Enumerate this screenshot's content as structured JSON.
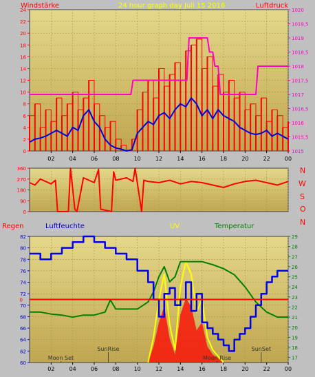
{
  "top": {
    "label_left": "Windstärke",
    "label_title": "24 hour graph day   Juli 15 2016",
    "label_right": "Luftdruck"
  },
  "wind_dir": {
    "labels": [
      "N",
      "W",
      "S",
      "O",
      "N"
    ]
  },
  "bottom": {
    "label_regen": "Regen",
    "label_feuchte": "Luftfeuchte",
    "label_uv": "UV",
    "label_temp": "Temperatur",
    "events": [
      {
        "label": "Moon Set",
        "hour": 2.9
      },
      {
        "label": "SunRise",
        "hour": 7.3
      },
      {
        "label": "Moon Rise",
        "hour": 17.4
      },
      {
        "label": "SunSet",
        "hour": 21.5
      }
    ]
  },
  "colors": {
    "panel_bg_top": "#e4d88a",
    "panel_bg_bottom": "#c0a650",
    "wind": "#ff0000",
    "wind_avg": "#0000dd",
    "pressure": "#ff00cc",
    "humidity": "#0000ee",
    "uv": "#ffff00",
    "temperature": "#008000",
    "rain": "#ff0000",
    "solar": "#ff0000"
  },
  "chart_data": [
    {
      "type": "line",
      "name": "wind-pressure",
      "x_ticks": [
        "02",
        "04",
        "06",
        "08",
        "10",
        "12",
        "14",
        "16",
        "18",
        "20",
        "22",
        "00"
      ],
      "ylim": [
        0,
        24
      ],
      "y_ticks": [
        "0",
        "2",
        "4",
        "6",
        "8",
        "10",
        "12",
        "14",
        "16",
        "18",
        "20",
        "22",
        "24"
      ],
      "y2lim": [
        1015,
        1020
      ],
      "y2_ticks": [
        "1015",
        "1015,5",
        "1016",
        "1016,5",
        "1017",
        "1017,5",
        "1018",
        "1018,5",
        "1019",
        "1019,5",
        "1020"
      ],
      "series": [
        {
          "name": "Windstärke",
          "x": [
            0,
            0.5,
            1,
            1.5,
            2,
            2.5,
            3,
            3.5,
            4,
            4.5,
            5,
            5.5,
            6,
            6.5,
            7,
            7.5,
            8,
            8.5,
            9,
            9.5,
            10,
            10.5,
            11,
            11.5,
            12,
            12.5,
            13,
            13.5,
            14,
            14.5,
            15,
            15.5,
            16,
            16.5,
            17,
            17.5,
            18,
            18.5,
            19,
            19.5,
            20,
            20.5,
            21,
            21.5,
            22,
            22.5,
            23,
            23.5,
            24
          ],
          "y": [
            6,
            8,
            4,
            7,
            5,
            9,
            6,
            8,
            10,
            7,
            9,
            12,
            8,
            6,
            4,
            5,
            2,
            1,
            0,
            2,
            7,
            10,
            12,
            9,
            14,
            11,
            13,
            15,
            12,
            17,
            18,
            19,
            14,
            16,
            11,
            13,
            10,
            12,
            9,
            10,
            7,
            8,
            6,
            9,
            5,
            7,
            6,
            4,
            5
          ]
        },
        {
          "name": "Windstärke Mittel",
          "x": [
            0,
            0.5,
            1,
            1.5,
            2,
            2.5,
            3,
            3.5,
            4,
            4.5,
            5,
            5.5,
            6,
            6.5,
            7,
            7.5,
            8,
            8.5,
            9,
            9.5,
            10,
            10.5,
            11,
            11.5,
            12,
            12.5,
            13,
            13.5,
            14,
            14.5,
            15,
            15.5,
            16,
            16.5,
            17,
            17.5,
            18,
            18.5,
            19,
            19.5,
            20,
            20.5,
            21,
            21.5,
            22,
            22.5,
            23,
            23.5,
            24
          ],
          "y": [
            1.5,
            2,
            2.2,
            2.5,
            3,
            3.5,
            3,
            2.5,
            4,
            3.5,
            6,
            7,
            5,
            4,
            2,
            1,
            0.5,
            0.3,
            0,
            0.2,
            3,
            4,
            5,
            4.5,
            6,
            6.5,
            5.5,
            7,
            8,
            7.5,
            9,
            8,
            6,
            7,
            5.5,
            7,
            6,
            5.5,
            5,
            4,
            3.5,
            3,
            2.8,
            3,
            3.5,
            2.5,
            3,
            2.5,
            2
          ]
        },
        {
          "name": "Luftdruck",
          "x": [
            0,
            1,
            1.2,
            4.8,
            5,
            9.4,
            9.6,
            10.6,
            10.8,
            14.6,
            14.8,
            16.5,
            16.7,
            17,
            17.2,
            17.5,
            17.7,
            21,
            21.2,
            24
          ],
          "y": [
            1017,
            1017,
            1017,
            1017,
            1017,
            1017,
            1017.5,
            1017.5,
            1017.5,
            1017.5,
            1019,
            1019,
            1018.5,
            1018.5,
            1018,
            1018,
            1017,
            1017,
            1018,
            1018
          ]
        }
      ]
    },
    {
      "type": "line",
      "name": "wind-direction",
      "ylim": [
        0,
        360
      ],
      "y_ticks": [
        "0",
        "90",
        "180",
        "270",
        "360"
      ],
      "series": [
        {
          "name": "Windrichtung",
          "x": [
            0,
            0.5,
            1,
            1.5,
            2,
            2.4,
            2.6,
            3.6,
            3.8,
            4.2,
            4.4,
            5,
            5.5,
            6,
            6.4,
            6.6,
            7.6,
            7.8,
            8,
            9,
            9.6,
            9.8,
            10.4,
            10.6,
            11,
            12,
            13,
            14,
            15,
            16,
            17,
            18,
            19,
            20,
            21,
            22,
            23,
            24
          ],
          "y": [
            240,
            220,
            270,
            250,
            230,
            260,
            0,
            0,
            360,
            20,
            0,
            280,
            260,
            240,
            350,
            20,
            0,
            330,
            260,
            280,
            250,
            360,
            0,
            260,
            250,
            240,
            260,
            230,
            250,
            240,
            220,
            200,
            230,
            250,
            260,
            240,
            220,
            250
          ]
        }
      ]
    },
    {
      "type": "line",
      "name": "humidity-uv-temperature",
      "x_ticks": [
        "02",
        "04",
        "06",
        "08",
        "10",
        "12",
        "14",
        "16",
        "18",
        "20",
        "22",
        "00"
      ],
      "ylim": [
        60,
        82
      ],
      "y_ticks": [
        "60",
        "62",
        "64",
        "66",
        "68",
        "70",
        "72",
        "74",
        "76",
        "78",
        "80",
        "82"
      ],
      "y_mid_label": "0",
      "y2lim": [
        16.5,
        29
      ],
      "y2_ticks": [
        "17",
        "18",
        "19",
        "20",
        "21",
        "22",
        "23",
        "24",
        "25",
        "26",
        "27",
        "28",
        "29"
      ],
      "series": [
        {
          "name": "Luftfeuchte",
          "x": [
            0,
            1,
            2,
            3,
            4,
            5,
            6,
            7,
            8,
            9,
            10,
            11,
            11.5,
            12,
            12.5,
            13,
            13.5,
            14,
            14.5,
            15,
            15.5,
            16,
            16.5,
            17,
            17.5,
            18,
            18.5,
            19,
            19.5,
            20,
            20.5,
            21,
            21.5,
            22,
            22.5,
            23,
            24
          ],
          "y": [
            79,
            78,
            79,
            80,
            81,
            82,
            81,
            80,
            79,
            78,
            76,
            74,
            71,
            68,
            72,
            73,
            70,
            71,
            74,
            69,
            72,
            67,
            66,
            65,
            64,
            63,
            62,
            64,
            65,
            66,
            68,
            70,
            72,
            74,
            75,
            76,
            76
          ]
        },
        {
          "name": "Temperatur",
          "x": [
            0,
            1,
            2,
            3,
            4,
            5,
            6,
            7,
            7.5,
            8,
            9,
            10,
            11,
            11.5,
            12,
            12.5,
            13,
            13.5,
            14,
            14.5,
            15,
            16,
            17,
            18,
            19,
            20,
            21,
            22,
            23,
            24
          ],
          "y": [
            21.5,
            21.5,
            21.3,
            21.2,
            21,
            21.2,
            21.2,
            21.5,
            22.7,
            21.8,
            21.8,
            21.8,
            22.5,
            23.5,
            25,
            26,
            24.5,
            25,
            26.5,
            26.5,
            26.5,
            26.5,
            26.2,
            25.8,
            25.2,
            24,
            22.5,
            21.5,
            21,
            21
          ]
        },
        {
          "name": "UV",
          "x": [
            11,
            11.5,
            12,
            12.5,
            13,
            13.5,
            14,
            14.5,
            15,
            15.5,
            16,
            16.5,
            17,
            17.5,
            18
          ],
          "y": [
            0,
            2,
            5,
            7,
            3,
            1,
            6,
            8,
            7,
            4,
            5,
            2,
            1,
            0.5,
            0
          ]
        },
        {
          "name": "Regen",
          "x": [
            0,
            24
          ],
          "y": [
            71,
            71
          ]
        }
      ]
    }
  ]
}
